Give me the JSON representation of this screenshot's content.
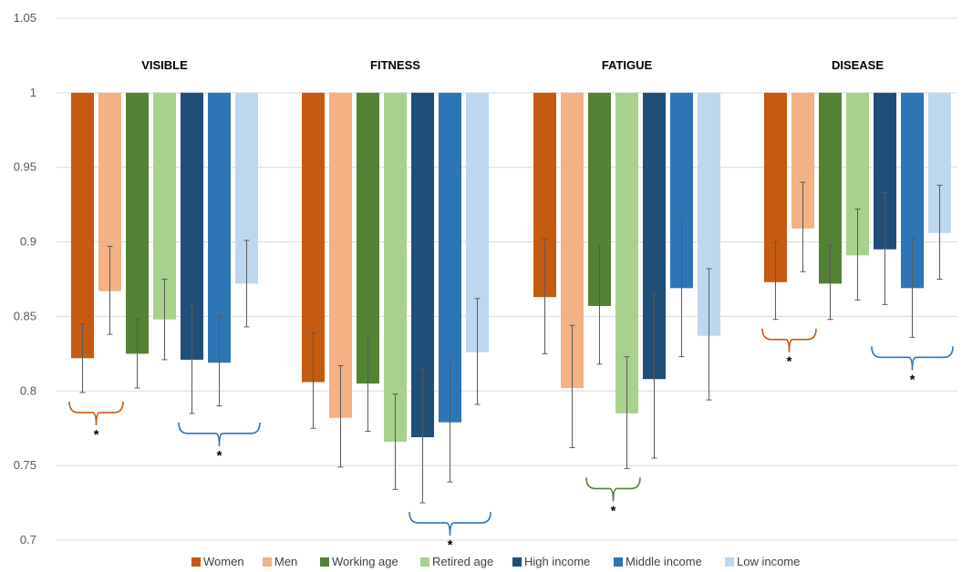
{
  "chart_data": {
    "type": "bar",
    "title": "",
    "xlabel": "",
    "ylabel": "",
    "ylim": [
      0.7,
      1.05
    ],
    "baseline": 1,
    "yticks": [
      0.7,
      0.75,
      0.8,
      0.85,
      0.9,
      0.95,
      1,
      1.05
    ],
    "ytick_labels": [
      "0.7",
      "0.75",
      "0.8",
      "0.85",
      "0.9",
      "0.95",
      "1",
      "1.05"
    ],
    "grid": true,
    "legend_position": "bottom",
    "categories": [
      "VISIBLE",
      "FITNESS",
      "FATIGUE",
      "DISEASE"
    ],
    "series": [
      {
        "name": "Women",
        "color": "#C55A11",
        "values": [
          0.822,
          0.806,
          0.863,
          0.873
        ],
        "ci_low": [
          0.799,
          0.775,
          0.825,
          0.848
        ],
        "ci_high": [
          0.845,
          0.839,
          0.902,
          0.9
        ]
      },
      {
        "name": "Men",
        "color": "#F4B183",
        "values": [
          0.867,
          0.782,
          0.802,
          0.909
        ],
        "ci_low": [
          0.838,
          0.749,
          0.762,
          0.88
        ],
        "ci_high": [
          0.897,
          0.817,
          0.844,
          0.94
        ]
      },
      {
        "name": "Working age",
        "color": "#548235",
        "values": [
          0.825,
          0.805,
          0.857,
          0.872
        ],
        "ci_low": [
          0.802,
          0.773,
          0.818,
          0.848
        ],
        "ci_high": [
          0.848,
          0.837,
          0.898,
          0.898
        ]
      },
      {
        "name": "Retired age",
        "color": "#A9D18E",
        "values": [
          0.848,
          0.766,
          0.785,
          0.891
        ],
        "ci_low": [
          0.821,
          0.734,
          0.748,
          0.861
        ],
        "ci_high": [
          0.875,
          0.798,
          0.823,
          0.922
        ]
      },
      {
        "name": "High income",
        "color": "#1F4E79",
        "values": [
          0.821,
          0.769,
          0.808,
          0.895
        ],
        "ci_low": [
          0.785,
          0.725,
          0.755,
          0.858
        ],
        "ci_high": [
          0.858,
          0.815,
          0.865,
          0.933
        ]
      },
      {
        "name": "Middle income",
        "color": "#2E75B6",
        "values": [
          0.819,
          0.779,
          0.869,
          0.869
        ],
        "ci_low": [
          0.79,
          0.739,
          0.823,
          0.836
        ],
        "ci_high": [
          0.85,
          0.82,
          0.917,
          0.903
        ]
      },
      {
        "name": "Low income",
        "color": "#BDD7EE",
        "values": [
          0.872,
          0.826,
          0.837,
          0.906
        ],
        "ci_low": [
          0.843,
          0.791,
          0.794,
          0.875
        ],
        "ci_high": [
          0.901,
          0.862,
          0.882,
          0.938
        ]
      }
    ],
    "significance": [
      {
        "category": 0,
        "from_series": 0,
        "to_series": 1,
        "color": "#C55A11",
        "label": "*"
      },
      {
        "category": 0,
        "from_series": 4,
        "to_series": 6,
        "color": "#2E75B6",
        "label": "*"
      },
      {
        "category": 1,
        "from_series": 4,
        "to_series": 6,
        "color": "#2E75B6",
        "label": "*"
      },
      {
        "category": 2,
        "from_series": 2,
        "to_series": 3,
        "color": "#548235",
        "label": "*"
      },
      {
        "category": 3,
        "from_series": 0,
        "to_series": 1,
        "color": "#C55A11",
        "label": "*"
      },
      {
        "category": 3,
        "from_series": 4,
        "to_series": 6,
        "color": "#2E75B6",
        "label": "*"
      }
    ]
  }
}
